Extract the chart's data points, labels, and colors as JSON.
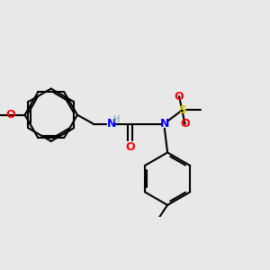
{
  "bg_color": "#e8e8e8",
  "atom_colors": {
    "O": "#ff0000",
    "N": "#0000ff",
    "S": "#cccc00",
    "C": "#000000",
    "H": "#70a0a0"
  },
  "bond_color": "#000000",
  "bond_width": 1.5,
  "figsize": [
    3.0,
    3.0
  ],
  "dpi": 100
}
